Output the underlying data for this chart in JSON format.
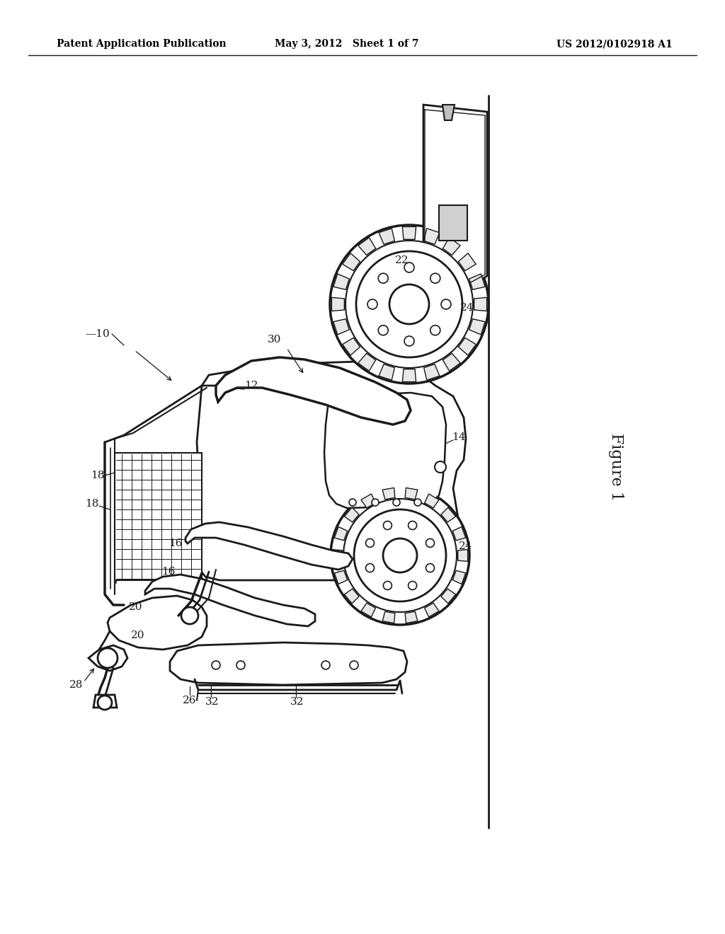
{
  "background_color": "#ffffff",
  "header_left": "Patent Application Publication",
  "header_mid": "May 3, 2012   Sheet 1 of 7",
  "header_right": "US 2012/0102918 A1",
  "figure_label": "Figure 1",
  "line_color": "#1a1a1a",
  "fig_width": 10.24,
  "fig_height": 13.2,
  "dpi": 100
}
